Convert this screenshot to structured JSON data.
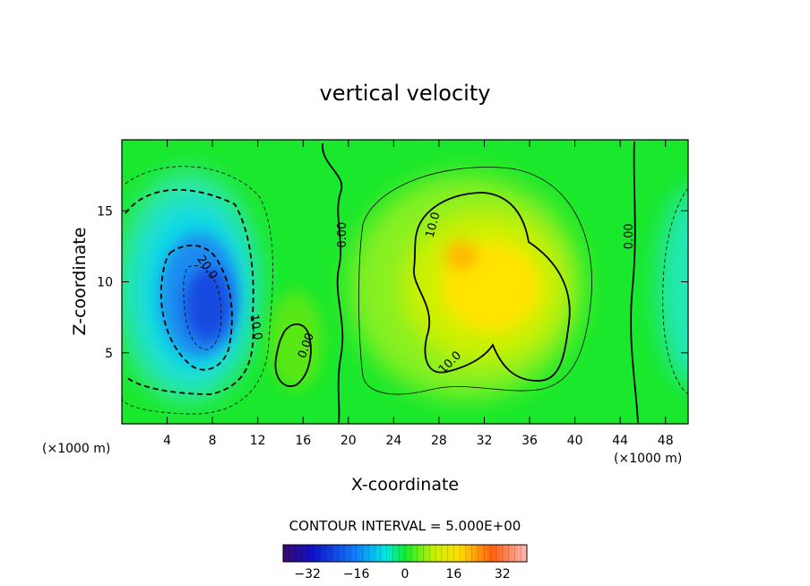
{
  "chart_data": {
    "type": "heatmap",
    "title": "vertical velocity",
    "xlabel": "X-coordinate",
    "ylabel": "Z-coordinate",
    "x_unit_left": "(×1000 m)",
    "x_unit_right": "(×1000 m)",
    "xlim": [
      0,
      50
    ],
    "ylim": [
      0,
      20
    ],
    "xticks": [
      4,
      8,
      12,
      16,
      20,
      24,
      28,
      32,
      36,
      40,
      44,
      48
    ],
    "yticks": [
      5,
      10,
      15
    ],
    "contour_interval_text": "CONTOUR INTERVAL = 5.000E+00",
    "colorbar": {
      "range": [
        -40,
        40
      ],
      "ticks": [
        -32,
        -16,
        0,
        16,
        32
      ],
      "tick_labels": [
        "−32",
        "−16",
        "0",
        "16",
        "32"
      ]
    },
    "contour_labels": [
      {
        "text": "20.0",
        "x": 7.5,
        "z": 11.0,
        "angle": 55
      },
      {
        "text": "10.0",
        "x": 11.8,
        "z": 6.8,
        "angle": 80
      },
      {
        "text": "0.00",
        "x": 16.3,
        "z": 5.5,
        "angle": -70
      },
      {
        "text": "0.00",
        "x": 19.5,
        "z": 13.3,
        "angle": -90
      },
      {
        "text": "10.0",
        "x": 27.5,
        "z": 14.0,
        "angle": -75
      },
      {
        "text": "10.0",
        "x": 29.0,
        "z": 4.3,
        "angle": -45
      },
      {
        "text": "0.00",
        "x": 44.8,
        "z": 13.2,
        "angle": -90
      }
    ],
    "field_features": [
      {
        "kind": "downdraft",
        "x": 7.5,
        "z": 9.0,
        "w_peak": -30
      },
      {
        "kind": "updraft",
        "x": 31.0,
        "z": 9.5,
        "w_peak": 28
      },
      {
        "kind": "updraft",
        "x": 15.8,
        "z": 6.5,
        "w_peak": 8
      },
      {
        "kind": "downdraft",
        "x": 50.0,
        "z": 10.0,
        "w_peak": -12
      }
    ]
  }
}
